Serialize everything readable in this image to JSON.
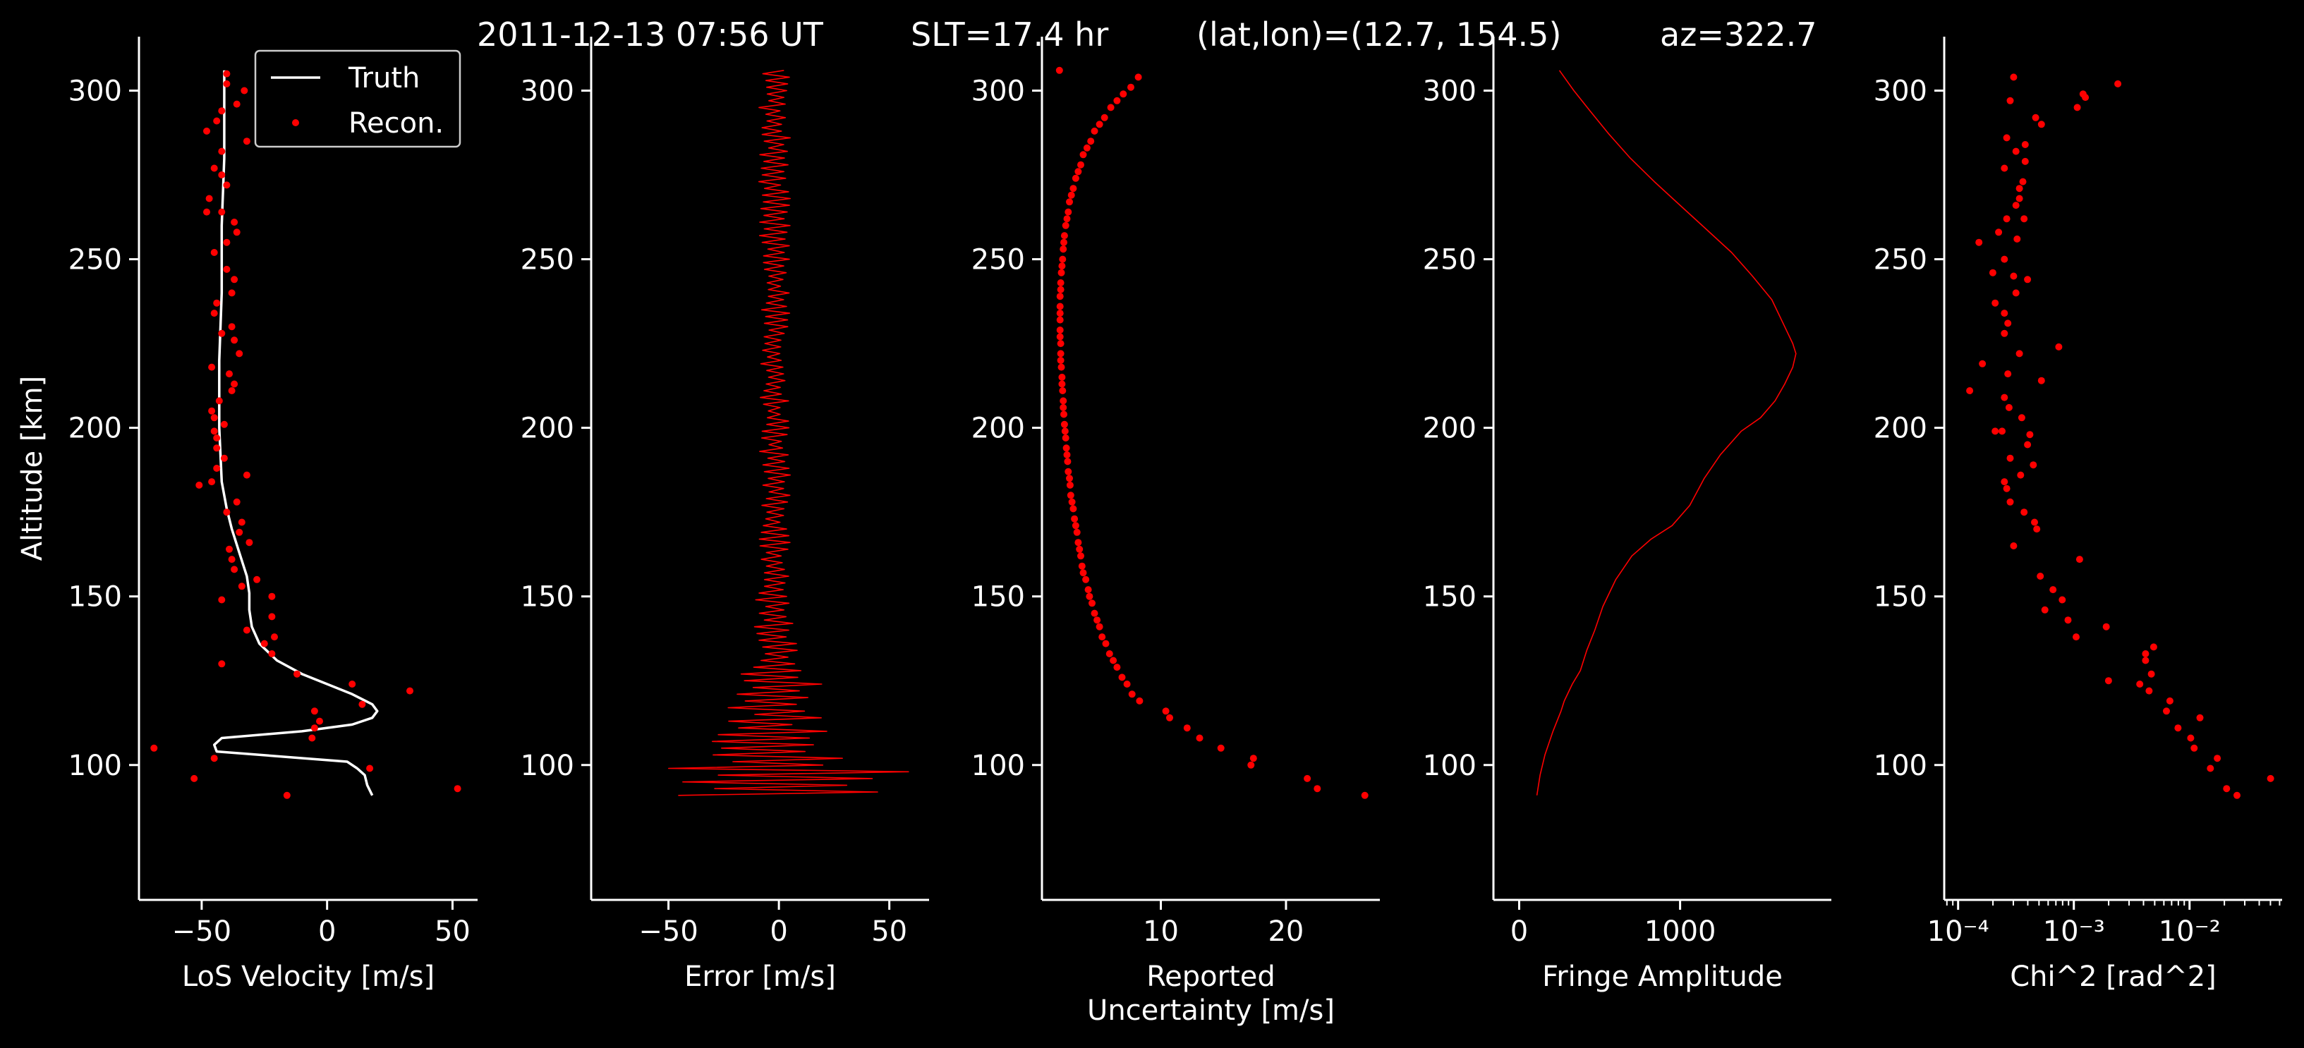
{
  "title_parts": [
    "2011-12-13 07:56 UT",
    "SLT=17.4 hr",
    "(lat,lon)=(12.7, 154.5)",
    "az=322.7"
  ],
  "colors": {
    "background": "#000000",
    "truth": "#ffffff",
    "recon": "#ff0000",
    "axis": "#ffffff"
  },
  "chart_data": [
    {
      "type": "line",
      "xlabel": "LoS Velocity [m/s]",
      "ylabel": "Altitude [km]",
      "xlim": [
        -75,
        60
      ],
      "ylim": [
        60,
        316
      ],
      "xticks": [
        -50,
        0,
        50
      ],
      "xtick_labels": [
        "−50",
        "0",
        "50"
      ],
      "yticks": [
        100,
        150,
        200,
        250,
        300
      ],
      "ytick_labels": [
        "100",
        "150",
        "200",
        "250",
        "300"
      ],
      "legend": {
        "placement": "top-right",
        "entries": [
          "Truth",
          "Recon."
        ]
      },
      "series": [
        {
          "name": "Truth",
          "style": "line",
          "x": [
            18,
            16,
            15,
            12,
            8,
            -44,
            -45,
            -42,
            -10,
            10,
            18,
            20,
            18,
            10,
            0,
            -10,
            -20,
            -27,
            -30,
            -31,
            -31,
            -32,
            -35,
            -38,
            -40,
            -42,
            -43,
            -43,
            -42,
            -42,
            -41,
            -41
          ],
          "y": [
            91,
            94,
            97,
            99,
            101,
            104,
            106,
            108,
            110,
            112,
            114,
            116,
            118,
            121,
            124,
            127,
            131,
            136,
            141,
            146,
            151,
            156,
            163,
            170,
            176,
            184,
            200,
            220,
            240,
            260,
            280,
            306
          ]
        },
        {
          "name": "Recon.",
          "style": "points",
          "x": [
            -16,
            52,
            -53,
            17,
            -69,
            -45,
            -6,
            -5,
            -3,
            14,
            -5,
            10,
            33,
            -12,
            -42,
            -22,
            -25,
            -21,
            -32,
            -22,
            -42,
            -22,
            -34,
            -28,
            -37,
            -38,
            -39,
            -31,
            -35,
            -34,
            -40,
            -36,
            -51,
            -46,
            -32,
            -44,
            -41,
            -44,
            -44,
            -45,
            -41,
            -45,
            -46,
            -43,
            -38,
            -37,
            -39,
            -46,
            -35,
            -37,
            -42,
            -38,
            -45,
            -44,
            -38,
            -37,
            -40,
            -45,
            -40,
            -36,
            -37,
            -42,
            -48,
            -47,
            -40,
            -42,
            -45,
            -42,
            -32,
            -48,
            -44,
            -42,
            -36,
            -33,
            -40,
            -40
          ],
          "y": [
            91,
            93,
            96,
            99,
            105,
            102,
            108,
            111,
            113,
            118,
            116,
            124,
            122,
            127,
            130,
            133,
            136,
            138,
            140,
            144,
            149,
            150,
            153,
            155,
            158,
            161,
            164,
            166,
            169,
            172,
            175,
            178,
            183,
            184,
            186,
            188,
            191,
            194,
            197,
            199,
            201,
            203,
            205,
            208,
            211,
            213,
            216,
            218,
            222,
            226,
            228,
            230,
            234,
            237,
            240,
            244,
            247,
            252,
            255,
            258,
            261,
            264,
            264,
            268,
            272,
            275,
            277,
            282,
            285,
            288,
            291,
            294,
            296,
            300,
            302,
            305
          ]
        }
      ]
    },
    {
      "type": "line",
      "xlabel": "Error [m/s]",
      "xlim": [
        -85,
        68
      ],
      "ylim": [
        60,
        316
      ],
      "xticks": [
        -50,
        0,
        50
      ],
      "xtick_labels": [
        "−50",
        "0",
        "50"
      ],
      "yticks": [
        100,
        150,
        200,
        250,
        300
      ],
      "ytick_labels": [
        "100",
        "150",
        "200",
        "250",
        "300"
      ],
      "series": [
        {
          "name": "",
          "style": "line",
          "profile": "error"
        }
      ]
    },
    {
      "type": "scatter",
      "xlabel": "Reported\nUncertainty [m/s]",
      "xlim": [
        0.5,
        27.5
      ],
      "ylim": [
        60,
        316
      ],
      "xticks": [
        10,
        20
      ],
      "xtick_labels": [
        "10",
        "20"
      ],
      "yticks": [
        100,
        150,
        200,
        250,
        300
      ],
      "ytick_labels": [
        "100",
        "150",
        "200",
        "250",
        "300"
      ],
      "series": [
        {
          "name": "",
          "style": "points",
          "x": [
            26.3,
            22.5,
            21.7,
            17.2,
            17.4,
            14.8,
            13.1,
            12.1,
            10.7,
            10.4,
            8.3,
            7.7,
            7.3,
            6.9,
            6.5,
            6.2,
            5.9,
            5.6,
            5.3,
            5.1,
            4.9,
            4.7,
            4.5,
            4.3,
            4.2,
            4.0,
            3.8,
            3.7,
            3.6,
            3.5,
            3.4,
            3.3,
            3.2,
            3.1,
            3.0,
            2.9,
            2.8,
            2.75,
            2.7,
            2.6,
            2.55,
            2.5,
            2.45,
            2.4,
            2.35,
            2.3,
            2.25,
            2.2,
            2.2,
            2.15,
            2.1,
            2.1,
            2.05,
            2.0,
            2.0,
            2.0,
            1.95,
            1.95,
            1.95,
            1.95,
            1.95,
            1.95,
            2.0,
            2.0,
            2.05,
            2.1,
            2.15,
            2.2,
            2.25,
            2.3,
            2.4,
            2.5,
            2.6,
            2.7,
            2.85,
            3.0,
            3.2,
            3.4,
            3.6,
            3.8,
            4.1,
            4.4,
            4.7,
            5.1,
            5.5,
            6.0,
            6.5,
            7.0,
            7.6,
            8.2,
            1.9
          ],
          "y": [
            91,
            93,
            96,
            100,
            102,
            105,
            108,
            111,
            114,
            116,
            119,
            121,
            124,
            126,
            129,
            131,
            133,
            136,
            138,
            141,
            143,
            145,
            148,
            150,
            152,
            155,
            157,
            159,
            162,
            164,
            166,
            169,
            171,
            173,
            176,
            178,
            180,
            183,
            185,
            187,
            190,
            192,
            194,
            197,
            199,
            201,
            204,
            206,
            208,
            211,
            213,
            215,
            218,
            220,
            222,
            225,
            227,
            229,
            232,
            234,
            236,
            239,
            241,
            243,
            246,
            248,
            250,
            253,
            255,
            257,
            260,
            262,
            264,
            267,
            269,
            271,
            274,
            276,
            278,
            281,
            283,
            285,
            288,
            290,
            292,
            295,
            297,
            299,
            301,
            304,
            306
          ]
        }
      ]
    },
    {
      "type": "line",
      "xlabel": "Fringe Amplitude",
      "xlim": [
        -160,
        1940
      ],
      "ylim": [
        60,
        316
      ],
      "xticks": [
        0,
        1000
      ],
      "xtick_labels": [
        "0",
        "1000"
      ],
      "yticks": [
        100,
        150,
        200,
        250,
        300
      ],
      "ytick_labels": [
        "100",
        "150",
        "200",
        "250",
        "300"
      ],
      "series": [
        {
          "name": "",
          "style": "line",
          "x": [
            110,
            130,
            160,
            210,
            260,
            280,
            330,
            380,
            420,
            470,
            520,
            600,
            700,
            820,
            950,
            1060,
            1150,
            1250,
            1380,
            1500,
            1590,
            1650,
            1700,
            1720,
            1700,
            1650,
            1570,
            1450,
            1320,
            1160,
            1000,
            840,
            690,
            560,
            440,
            340,
            250
          ],
          "y": [
            91,
            97,
            103,
            110,
            116,
            119,
            124,
            128,
            134,
            140,
            147,
            155,
            162,
            167,
            171,
            177,
            185,
            192,
            199,
            203,
            208,
            213,
            218,
            222,
            225,
            230,
            238,
            245,
            252,
            259,
            266,
            273,
            280,
            287,
            294,
            300,
            306
          ]
        }
      ]
    },
    {
      "type": "scatter",
      "xlabel": "Chi^2 [rad^2]",
      "xscale": "log",
      "xlim_log10": [
        -4.12,
        -1.2
      ],
      "ylim": [
        60,
        316
      ],
      "xticks_log10": [
        -4,
        -3,
        -2
      ],
      "xtick_labels": [
        "10⁻⁴",
        "10⁻³",
        "10⁻²"
      ],
      "yticks": [
        100,
        150,
        200,
        250,
        300
      ],
      "ytick_labels": [
        "100",
        "150",
        "200",
        "250",
        "300"
      ],
      "series": [
        {
          "name": "",
          "style": "points",
          "x_log10": [
            -1.59,
            -1.68,
            -1.3,
            -1.82,
            -1.76,
            -1.96,
            -1.99,
            -2.1,
            -1.91,
            -2.2,
            -2.17,
            -2.35,
            -2.43,
            -2.33,
            -2.38,
            -2.7,
            -2.38,
            -2.31,
            -2.98,
            -2.72,
            -3.05,
            -3.25,
            -3.1,
            -3.18,
            -3.29,
            -2.95,
            -3.52,
            -3.32,
            -3.34,
            -3.43,
            -3.55,
            -3.58,
            -3.6,
            -3.46,
            -3.35,
            -3.55,
            -3.4,
            -3.38,
            -3.62,
            -3.68,
            -3.45,
            -3.56,
            -3.28,
            -3.6,
            -3.9,
            -3.57,
            -3.13,
            -3.47,
            -3.6,
            -3.57,
            -3.6,
            -3.68,
            -3.5,
            -3.4,
            -3.52,
            -3.7,
            -3.6,
            -3.82,
            -3.79,
            -3.49,
            -3.65,
            -3.58,
            -3.43,
            -3.5,
            -3.47,
            -3.47,
            -3.44,
            -3.6,
            -3.42,
            -3.5,
            -3.42,
            -3.58,
            -3.28,
            -3.33,
            -2.97,
            -3.55,
            -2.92,
            -2.9,
            -2.62,
            -3.52
          ],
          "y": [
            91,
            93,
            96,
            99,
            102,
            105,
            108,
            111,
            114,
            116,
            119,
            122,
            124,
            127,
            131,
            125,
            133,
            135,
            138,
            141,
            143,
            146,
            149,
            152,
            156,
            161,
            165,
            170,
            172,
            175,
            178,
            182,
            184,
            186,
            189,
            191,
            195,
            198,
            199,
            199,
            203,
            206,
            214,
            209,
            211,
            216,
            224,
            222,
            228,
            231,
            234,
            237,
            240,
            244,
            245,
            246,
            250,
            255,
            219,
            256,
            258,
            262,
            262,
            266,
            268,
            271,
            273,
            277,
            279,
            282,
            284,
            286,
            290,
            292,
            295,
            297,
            299,
            298,
            302,
            304
          ]
        }
      ]
    }
  ]
}
